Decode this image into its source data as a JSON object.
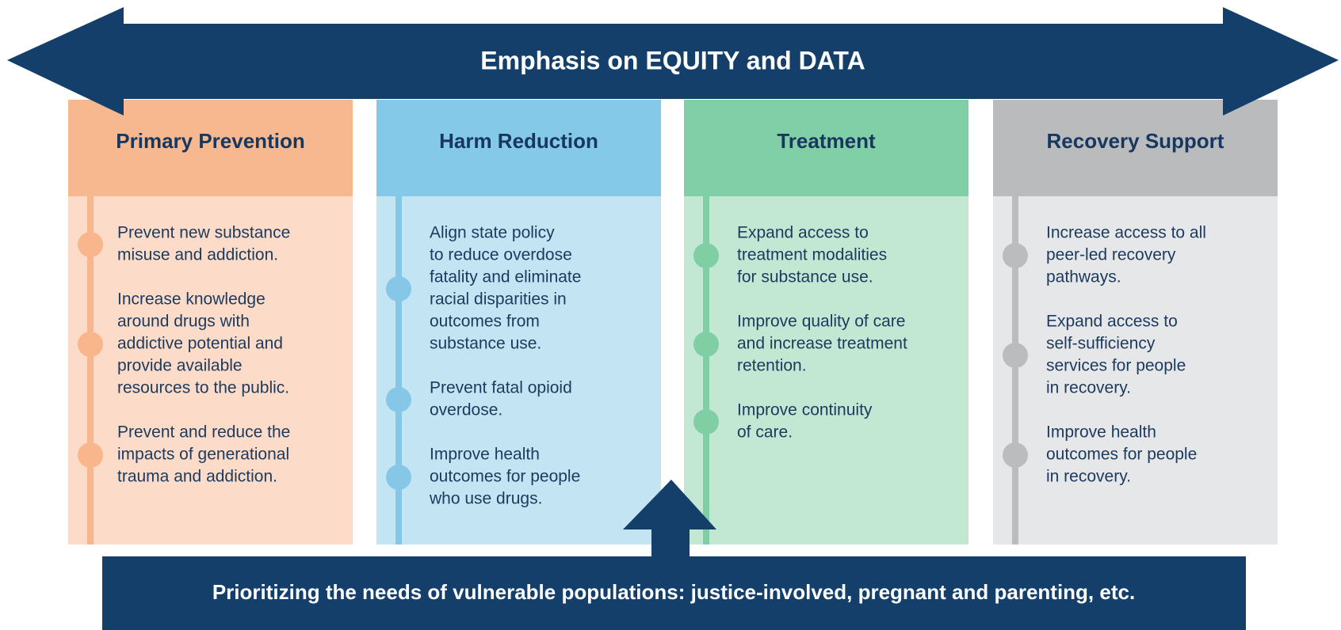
{
  "banner": {
    "title": "Emphasis on EQUITY and DATA"
  },
  "columns": [
    {
      "title": "Primary Prevention",
      "items": [
        [
          "Prevent new substance",
          "misuse and addiction."
        ],
        [
          "Increase knowledge",
          "around drugs with",
          "addictive potential and",
          "provide available",
          "resources to the public."
        ],
        [
          "Prevent and reduce the",
          "impacts of generational",
          "trauma and addiction."
        ]
      ]
    },
    {
      "title": "Harm Reduction",
      "items": [
        [
          "Align state policy",
          "to reduce overdose",
          "fatality and eliminate",
          "racial disparities in",
          "outcomes from",
          "substance use."
        ],
        [
          "Prevent fatal opioid",
          "overdose."
        ],
        [
          "Improve health",
          "outcomes for people",
          "who use drugs."
        ]
      ]
    },
    {
      "title": "Treatment",
      "items": [
        [
          "Expand access to",
          "treatment modalities",
          "for substance use."
        ],
        [
          "Improve quality of care",
          "and increase treatment",
          "retention."
        ],
        [
          "Improve continuity",
          "of care."
        ]
      ]
    },
    {
      "title": "Recovery Support",
      "items": [
        [
          "Increase access to all",
          "peer-led recovery",
          "pathways."
        ],
        [
          "Expand access to",
          "self-sufficiency",
          "services for people",
          "in recovery."
        ],
        [
          "Improve health",
          "outcomes for people",
          "in recovery."
        ]
      ]
    }
  ],
  "footer": {
    "title": "Prioritizing the needs of vulnerable populations: justice-involved, pregnant and parenting, etc."
  }
}
